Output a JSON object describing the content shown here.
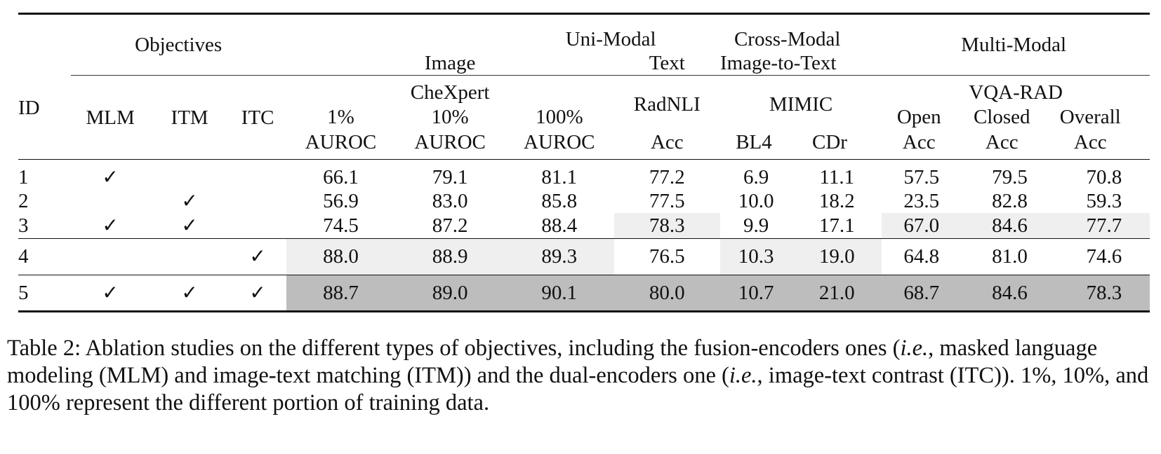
{
  "table": {
    "header": {
      "id": "ID",
      "objectives": "Objectives",
      "uni_modal": "Uni-Modal",
      "image": "Image",
      "text": "Text",
      "cross_modal": "Cross-Modal",
      "image_to_text": "Image-to-Text",
      "multi_modal": "Multi-Modal",
      "mlm": "MLM",
      "itm": "ITM",
      "itc": "ITC",
      "chexpert": "CheXpert",
      "pct1": "1%",
      "pct10": "10%",
      "pct100": "100%",
      "auroc": "AUROC",
      "radnli": "RadNLI",
      "acc": "Acc",
      "mimic": "MIMIC",
      "bl4": "BL4",
      "cdr": "CDr",
      "vqa_rad": "VQA-RAD",
      "open": "Open",
      "closed": "Closed",
      "overall": "Overall"
    },
    "check_mark": "✓",
    "rows": [
      {
        "id": "1",
        "mlm": true,
        "itm": false,
        "itc": false,
        "auroc1": "66.1",
        "auroc10": "79.1",
        "auroc100": "81.1",
        "radnli": "77.2",
        "bl4": "6.9",
        "cdr": "11.1",
        "open": "57.5",
        "closed": "79.5",
        "overall": "70.8"
      },
      {
        "id": "2",
        "mlm": false,
        "itm": true,
        "itc": false,
        "auroc1": "56.9",
        "auroc10": "83.0",
        "auroc100": "85.8",
        "radnli": "77.5",
        "bl4": "10.0",
        "cdr": "18.2",
        "open": "23.5",
        "closed": "82.8",
        "overall": "59.3"
      },
      {
        "id": "3",
        "mlm": true,
        "itm": true,
        "itc": false,
        "auroc1": "74.5",
        "auroc10": "87.2",
        "auroc100": "88.4",
        "radnli": "78.3",
        "bl4": "9.9",
        "cdr": "17.1",
        "open": "67.0",
        "closed": "84.6",
        "overall": "77.7"
      },
      {
        "id": "4",
        "mlm": false,
        "itm": false,
        "itc": true,
        "auroc1": "88.0",
        "auroc10": "88.9",
        "auroc100": "89.3",
        "radnli": "76.5",
        "bl4": "10.3",
        "cdr": "19.0",
        "open": "64.8",
        "closed": "81.0",
        "overall": "74.6"
      },
      {
        "id": "5",
        "mlm": true,
        "itm": true,
        "itc": true,
        "auroc1": "88.7",
        "auroc10": "89.0",
        "auroc100": "90.1",
        "radnli": "80.0",
        "bl4": "10.7",
        "cdr": "21.0",
        "open": "68.7",
        "closed": "84.6",
        "overall": "78.3"
      }
    ]
  },
  "caption": {
    "part1": "Table 2: Ablation studies on the different types of objectives, including the fusion-encoders ones (",
    "ie1": "i.e.",
    "part2": ", masked language modeling (MLM) and image-text matching (ITM)) and the dual-encoders one (",
    "ie2": "i.e.",
    "part3": ", image-text contrast (ITC)). 1%, 10%, and 100% represent the different portion of training data."
  }
}
